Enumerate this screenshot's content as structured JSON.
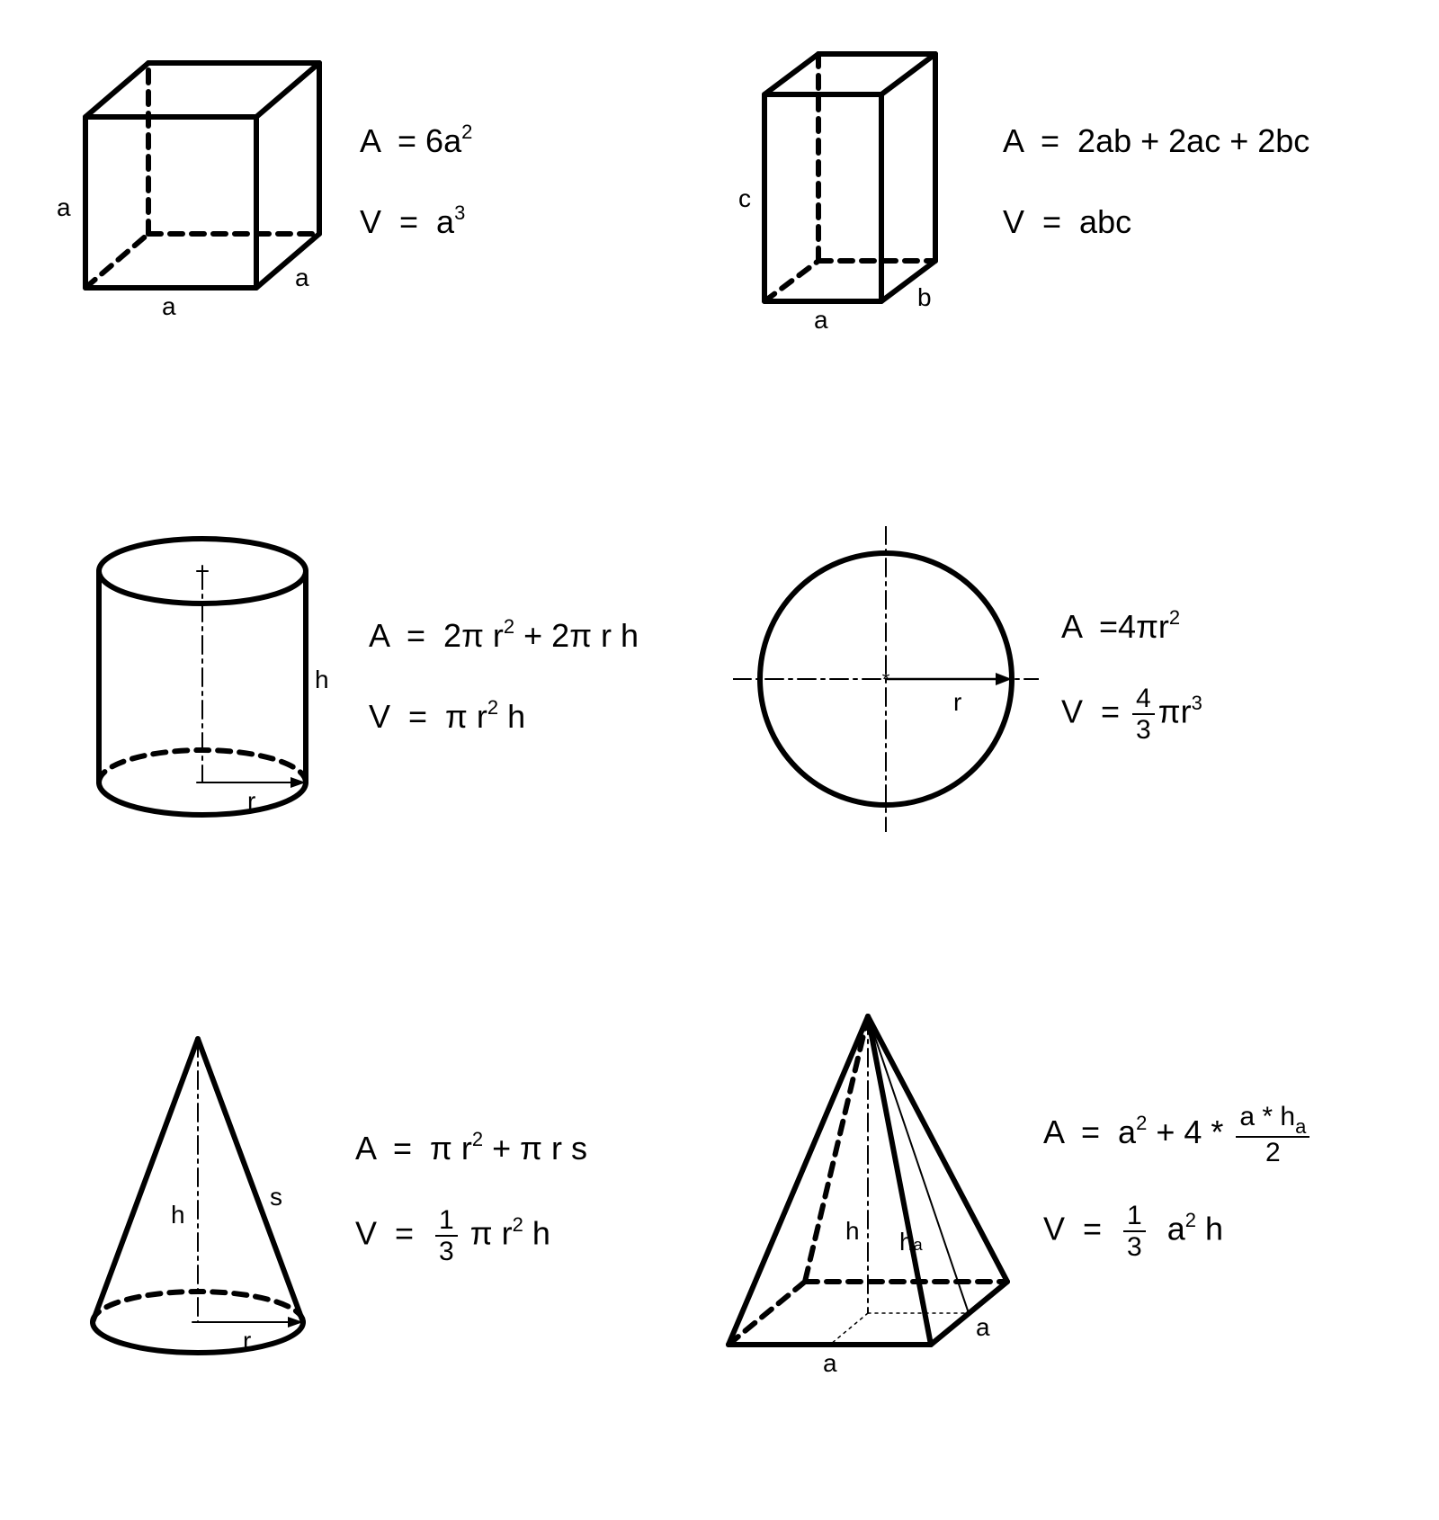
{
  "stroke": "#000000",
  "stroke_thick": 6,
  "stroke_thin": 2.5,
  "dash": "14 10",
  "dashdot": "20 6 4 6",
  "bg": "#ffffff",
  "shapes": {
    "cube": {
      "labels": {
        "left": "a",
        "bottom": "a",
        "right": "a"
      },
      "area_html": "A &nbsp;= 6a<span class='sup'>2</span>",
      "vol_html": "V &nbsp;= &nbsp;a<span class='sup'>3</span>"
    },
    "cuboid": {
      "labels": {
        "left": "c",
        "bottom": "a",
        "right": "b"
      },
      "area_html": "A &nbsp;= &nbsp;2ab + 2ac + 2bc",
      "vol_html": "V &nbsp;= &nbsp;abc"
    },
    "cylinder": {
      "labels": {
        "height": "h",
        "radius": "r"
      },
      "area_html": "A &nbsp;= &nbsp;2&pi; r<span class='sup'>2</span> + 2&pi; r h",
      "vol_html": "V &nbsp;= &nbsp;&pi; r<span class='sup'>2</span> h"
    },
    "sphere": {
      "labels": {
        "radius": "r"
      },
      "area_html": "A &nbsp;=4&pi;r<span class='sup'>2</span>",
      "vol_html": "V &nbsp;= <span class='frac'><span class='num'>4</span><span class='den'>3</span></span>&pi;r<span class='sup'>3</span>"
    },
    "cone": {
      "labels": {
        "height": "h",
        "radius": "r",
        "slant": "s"
      },
      "area_html": "A &nbsp;= &nbsp;&pi; r<span class='sup'>2</span> + &pi; r s",
      "vol_html": "V &nbsp;= &nbsp;<span class='frac'><span class='num'>1</span><span class='den'>3</span></span> &pi; r<span class='sup'>2</span> h"
    },
    "pyramid": {
      "labels": {
        "height": "h",
        "apothem": "h",
        "apothem_sub": "a",
        "base_a": "a",
        "base_b": "a"
      },
      "area_html": "A &nbsp;= &nbsp;a<span class='sup'>2</span> + 4 * <span class='frac'><span class='num'>a * h<span class='sub'>a</span></span><span class='den'>2</span></span>",
      "vol_html": "V &nbsp;= &nbsp;<span class='frac'><span class='num'>1</span><span class='den'>3</span></span>&nbsp; a<span class='sup'>2</span> h"
    }
  }
}
